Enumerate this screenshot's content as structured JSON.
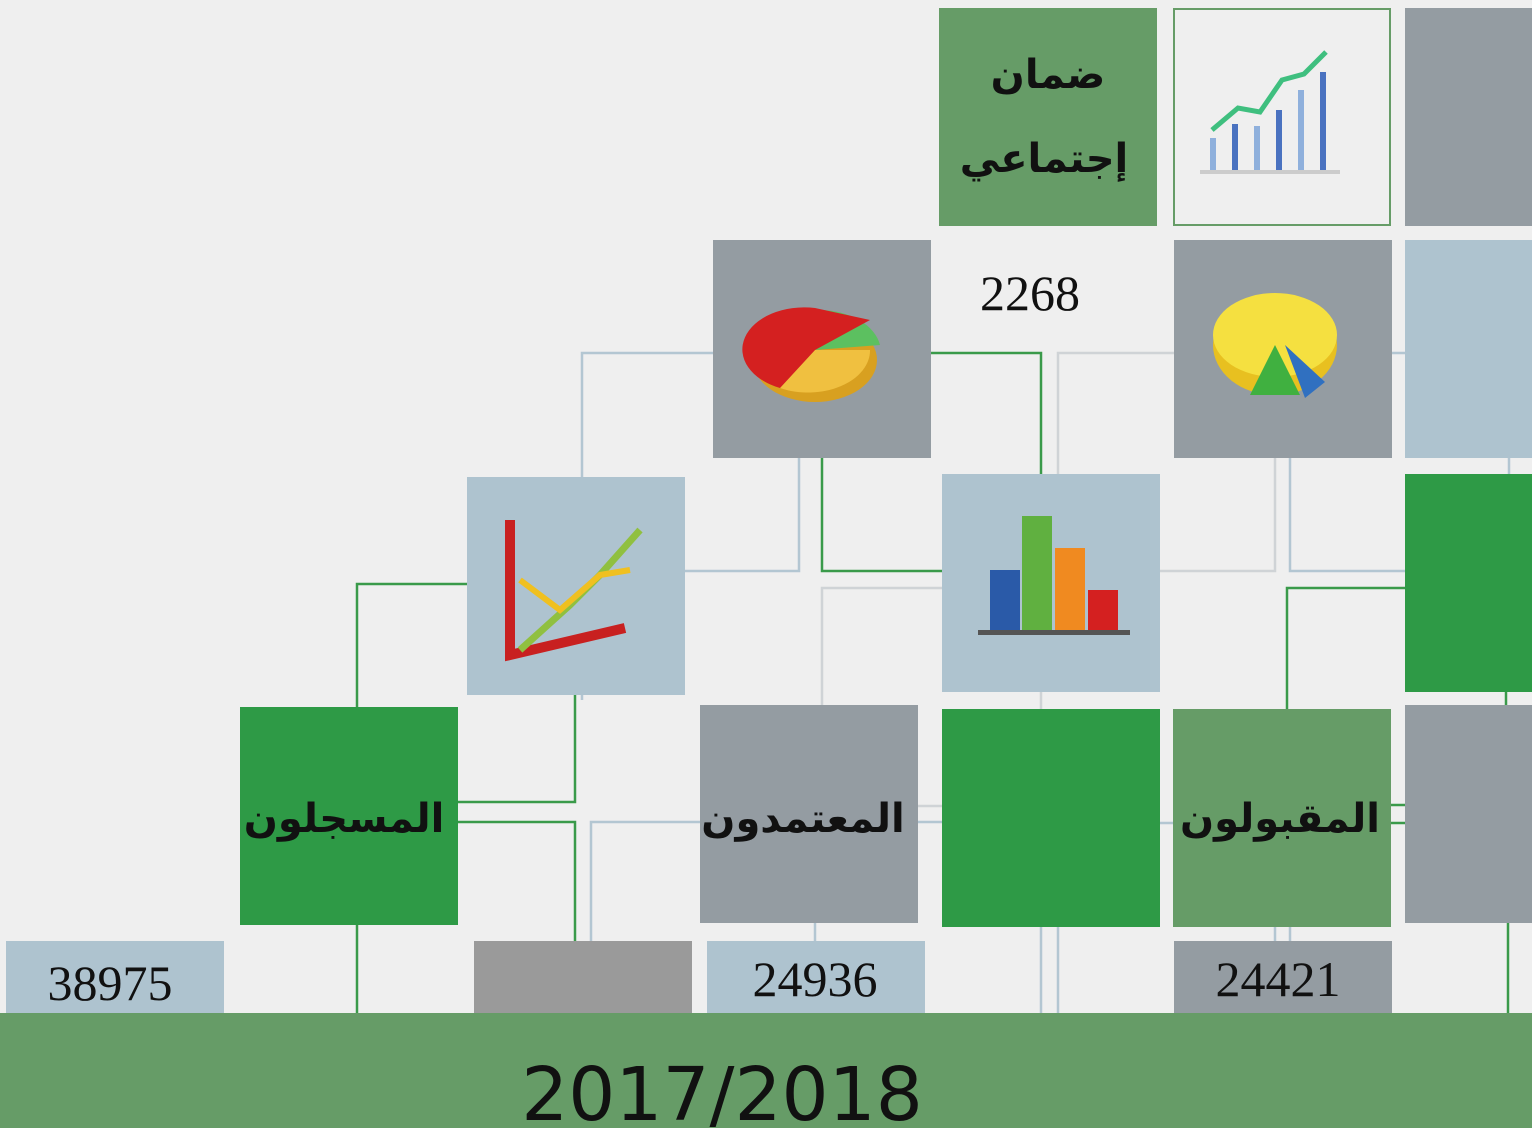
{
  "social_security": {
    "label": [
      "ضمان",
      "إجتماعي"
    ],
    "value": 2268
  },
  "registered": {
    "label": "المسجلون",
    "value": 38975
  },
  "approved": {
    "label": "المعتمدون",
    "value": 24936
  },
  "accepted": {
    "label": "المقبولون",
    "value": 24421
  },
  "year": "2017/2018"
}
